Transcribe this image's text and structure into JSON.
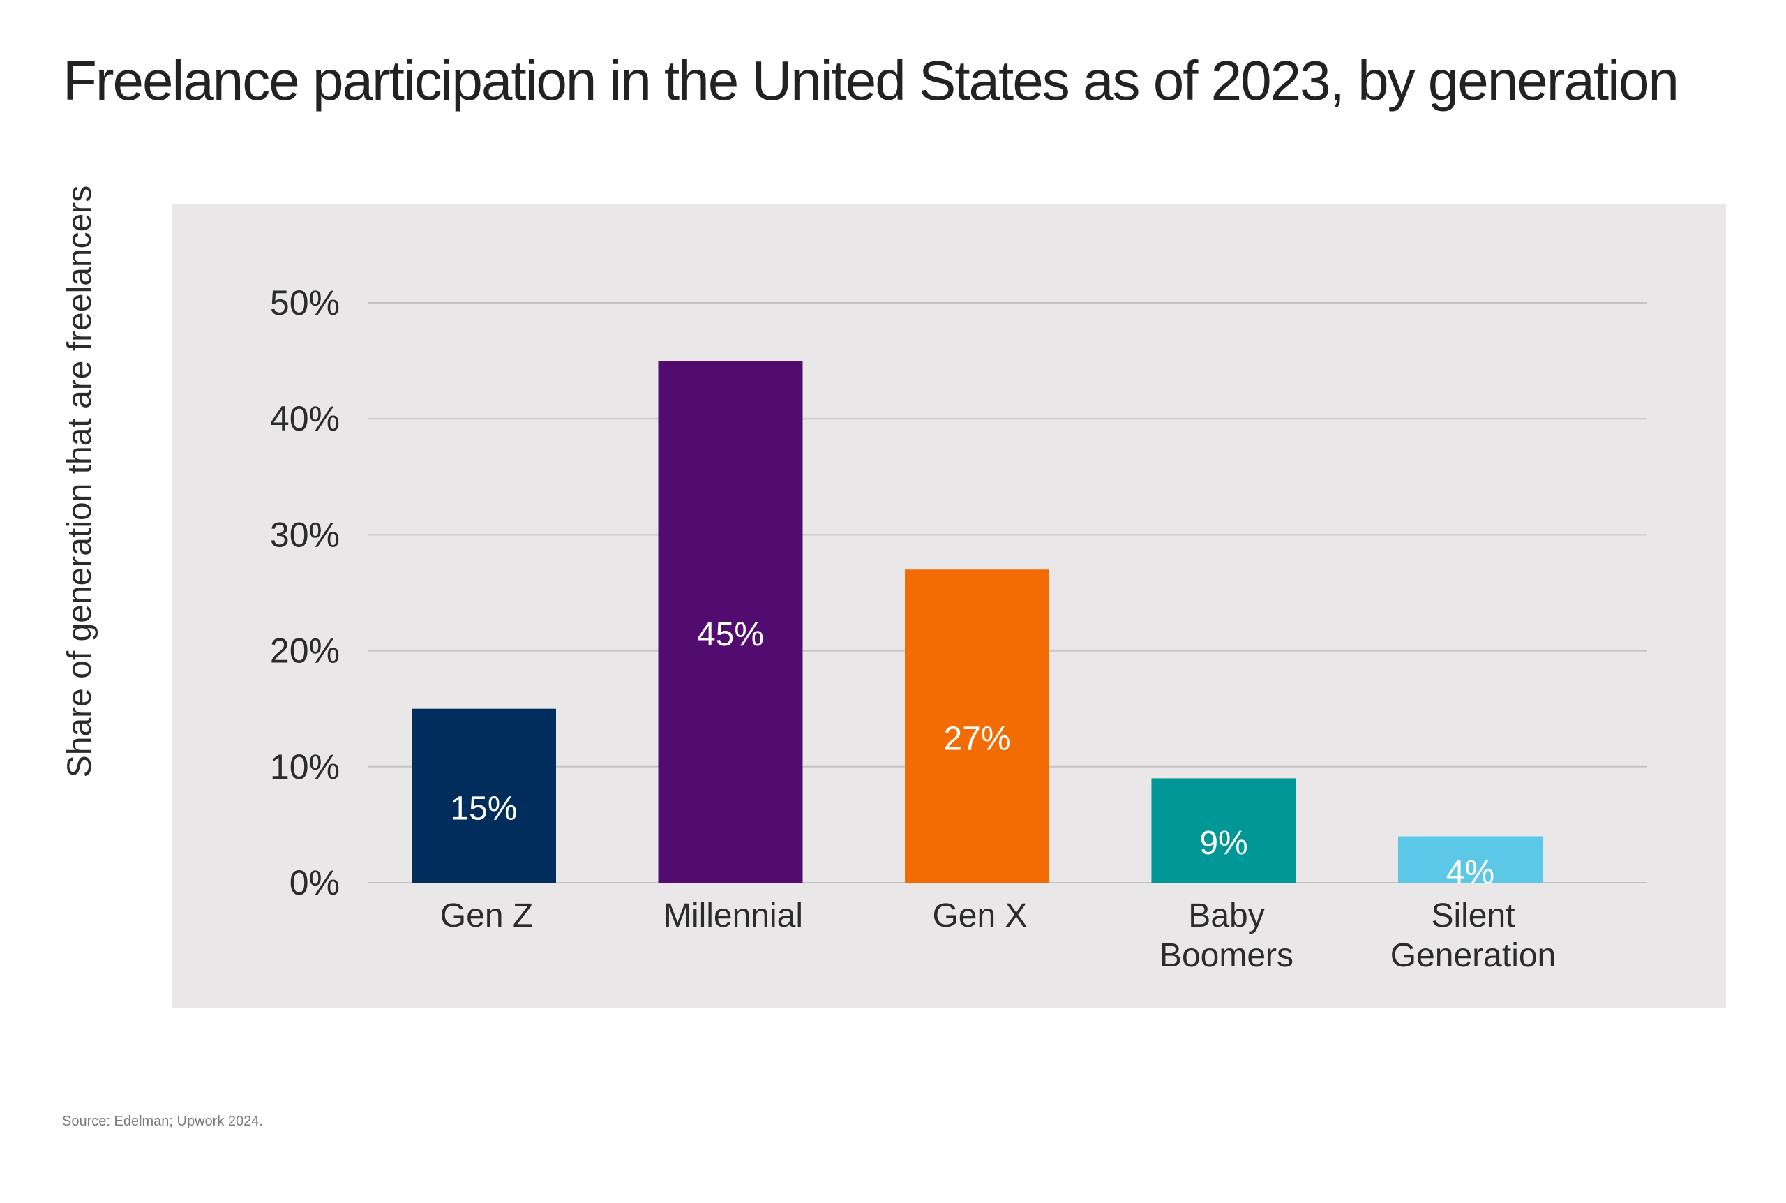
{
  "page": {
    "title": "Freelance participation in the United States as of 2023, by generation",
    "source": "Source: Edelman; Upwork 2024.",
    "panel_color": "#e9e7e8",
    "grid_color": "#c4c2c3"
  },
  "chart_data": {
    "type": "bar",
    "title": "Freelance participation in the United States as of 2023, by generation",
    "xlabel": "",
    "ylabel": "Share of generation that are freelancers",
    "ylim": [
      0,
      50
    ],
    "yticks": [
      0,
      10,
      20,
      30,
      40,
      50
    ],
    "ytick_labels": [
      "0%",
      "10%",
      "20%",
      "30%",
      "40%",
      "50%"
    ],
    "grid": true,
    "legend": "none",
    "categories": [
      [
        "Gen Z"
      ],
      [
        "Millennial"
      ],
      [
        "Gen X"
      ],
      [
        "Baby",
        "Boomers"
      ],
      [
        "Silent",
        "Generation"
      ]
    ],
    "category_names": [
      "Gen Z",
      "Millennial",
      "Gen X",
      "Baby Boomers",
      "Silent Generation"
    ],
    "values": [
      15,
      45,
      27,
      9,
      4
    ],
    "value_labels": [
      "15%",
      "45%",
      "27%",
      "9%",
      "4%"
    ],
    "colors": [
      "#002d5b",
      "#520c6f",
      "#f26b03",
      "#009796",
      "#5bc8e7"
    ],
    "source": "Source: Edelman; Upwork 2024."
  }
}
